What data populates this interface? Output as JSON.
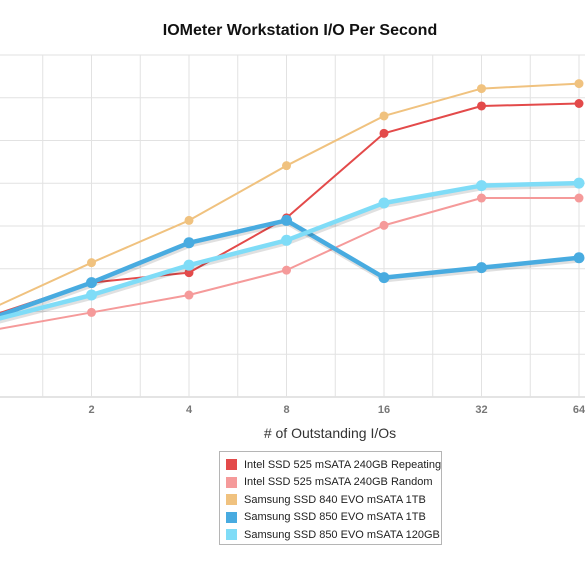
{
  "chart_data": {
    "type": "line",
    "title": "IOMeter Workstation I/O Per Second",
    "xlabel": "# of Outstanding I/Os",
    "ylabel": "",
    "x_scale": "log2",
    "x": [
      1,
      2,
      4,
      8,
      16,
      32,
      64
    ],
    "x_tick_labels": [
      "2",
      "4",
      "8",
      "16",
      "32",
      "64"
    ],
    "grid": true,
    "legend_position": "bottom-center",
    "series": [
      {
        "name": "Intel SSD 525 mSATA 240GB Repeating",
        "color": "#e34a4a",
        "values": [
          3.3,
          4.6,
          5.0,
          7.2,
          10.6,
          11.7,
          11.8
        ]
      },
      {
        "name": "Intel SSD 525 mSATA 240GB Random",
        "color": "#f59a9a",
        "values": [
          2.7,
          3.4,
          4.1,
          5.1,
          6.9,
          8.0,
          8.0
        ]
      },
      {
        "name": "Samsung SSD 840 EVO mSATA 1TB",
        "color": "#f0c27f",
        "values": [
          3.6,
          5.4,
          7.1,
          9.3,
          11.3,
          12.4,
          12.6
        ]
      },
      {
        "name": "Samsung SSD 850 EVO mSATA 1TB",
        "color": "#48abe0",
        "values": [
          3.2,
          4.6,
          6.2,
          7.1,
          4.8,
          5.2,
          5.6
        ]
      },
      {
        "name": "Samsung SSD 850 EVO mSATA 120GB",
        "color": "#7fdcf7",
        "values": [
          3.1,
          4.1,
          5.3,
          6.3,
          7.8,
          8.5,
          8.6
        ]
      }
    ]
  }
}
